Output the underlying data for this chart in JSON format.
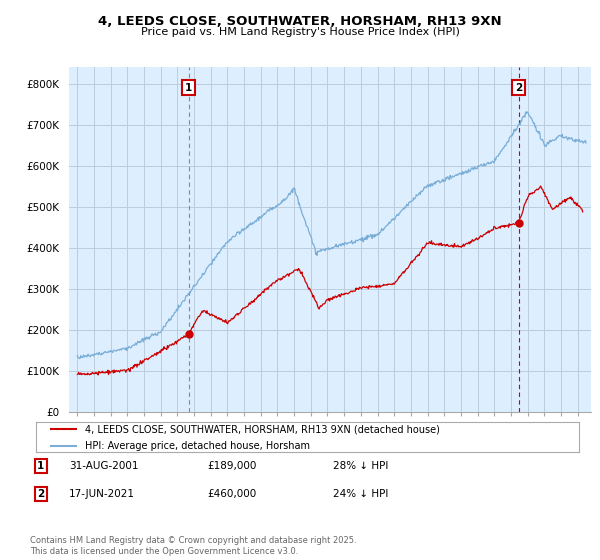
{
  "title": "4, LEEDS CLOSE, SOUTHWATER, HORSHAM, RH13 9XN",
  "subtitle": "Price paid vs. HM Land Registry's House Price Index (HPI)",
  "legend_property": "4, LEEDS CLOSE, SOUTHWATER, HORSHAM, RH13 9XN (detached house)",
  "legend_hpi": "HPI: Average price, detached house, Horsham",
  "footnote": "Contains HM Land Registry data © Crown copyright and database right 2025.\nThis data is licensed under the Open Government Licence v3.0.",
  "point1_date": "31-AUG-2001",
  "point1_price": "£189,000",
  "point1_hpi": "28% ↓ HPI",
  "point2_date": "17-JUN-2021",
  "point2_price": "£460,000",
  "point2_hpi": "24% ↓ HPI",
  "property_color": "#cc0000",
  "hpi_color": "#7aaed6",
  "plot_bg_color": "#ddeeff",
  "ytick_labels": [
    "£0",
    "£100K",
    "£200K",
    "£300K",
    "£400K",
    "£500K",
    "£600K",
    "£700K",
    "£800K"
  ],
  "yticks": [
    0,
    100000,
    200000,
    300000,
    400000,
    500000,
    600000,
    700000,
    800000
  ],
  "point1_x": 2001.67,
  "point1_y": 189000,
  "point2_x": 2021.46,
  "point2_y": 460000,
  "xlim": [
    1994.5,
    2025.8
  ],
  "ylim": [
    0,
    840000
  ],
  "background_color": "#ffffff",
  "grid_color": "#bbccdd"
}
